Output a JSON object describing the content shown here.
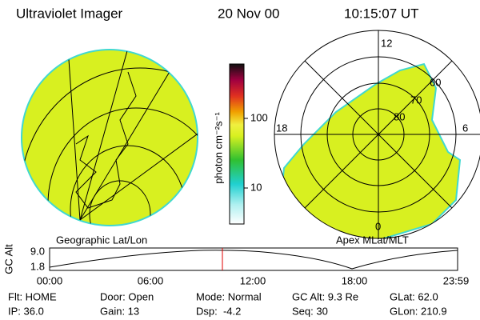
{
  "header": {
    "title": "Ultraviolet Imager",
    "date": "20 Nov 00",
    "time": "10:15:07 UT"
  },
  "left_map": {
    "label": "Geographic Lat/Lon"
  },
  "colorbar": {
    "label": "photon cm⁻²s⁻¹",
    "ticks": [
      "100",
      "10"
    ]
  },
  "polar_map": {
    "label": "Apex MLat/MLT",
    "mlt_labels": [
      "12",
      "18",
      "6",
      "0"
    ],
    "lat_labels": [
      "60",
      "70",
      "80"
    ]
  },
  "orbit_plot": {
    "y_label": "GC Alt",
    "y_ticks": [
      "9.0",
      "1.8"
    ],
    "x_ticks": [
      "00:00",
      "06:00",
      "12:00",
      "18:00",
      "23:59"
    ]
  },
  "info": [
    [
      "Flt: HOME",
      "Door: Open",
      "Mode: Normal",
      "GC Alt: 9.3 Re",
      "GLat: 62.0"
    ],
    [
      "IP: 36.0",
      "Gain: 13",
      "Dsp:  -4.2",
      "Seq: 30",
      "GLon: 210.9"
    ]
  ]
}
